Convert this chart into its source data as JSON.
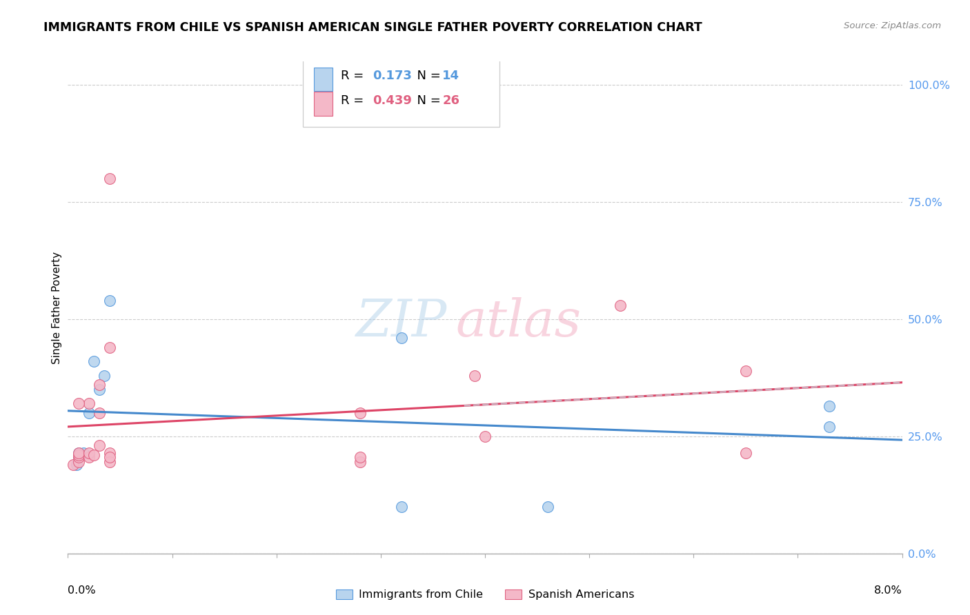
{
  "title": "IMMIGRANTS FROM CHILE VS SPANISH AMERICAN SINGLE FATHER POVERTY CORRELATION CHART",
  "source": "Source: ZipAtlas.com",
  "ylabel": "Single Father Poverty",
  "right_y_ticks": [
    0.0,
    0.25,
    0.5,
    0.75,
    1.0
  ],
  "right_y_labels": [
    "0.0%",
    "25.0%",
    "50.0%",
    "75.0%",
    "100.0%"
  ],
  "xlim": [
    0.0,
    0.08
  ],
  "ylim": [
    0.0,
    1.05
  ],
  "watermark_zip": "ZIP",
  "watermark_atlas": "atlas",
  "blue_R": "0.173",
  "blue_N": "14",
  "pink_R": "0.439",
  "pink_N": "26",
  "blue_label": "Immigrants from Chile",
  "pink_label": "Spanish Americans",
  "blue_face": "#b8d4ee",
  "blue_edge": "#5599dd",
  "pink_face": "#f4b8c8",
  "pink_edge": "#e06080",
  "blue_line": "#4488cc",
  "pink_line": "#dd4466",
  "pink_dash": "#ccaabb",
  "grid_color": "#cccccc",
  "right_tick_color": "#5599ee",
  "marker_size": 130,
  "chile_x": [
    0.0008,
    0.001,
    0.001,
    0.0015,
    0.002,
    0.0025,
    0.003,
    0.0035,
    0.004,
    0.032,
    0.032,
    0.046,
    0.073,
    0.073
  ],
  "chile_y": [
    0.19,
    0.205,
    0.215,
    0.215,
    0.3,
    0.41,
    0.35,
    0.38,
    0.54,
    0.46,
    0.1,
    0.1,
    0.27,
    0.315
  ],
  "spanish_x": [
    0.0005,
    0.001,
    0.001,
    0.001,
    0.001,
    0.002,
    0.002,
    0.002,
    0.0025,
    0.003,
    0.003,
    0.003,
    0.004,
    0.004,
    0.004,
    0.004,
    0.004,
    0.028,
    0.028,
    0.028,
    0.039,
    0.04,
    0.053,
    0.065,
    0.065,
    0.001
  ],
  "spanish_y": [
    0.19,
    0.195,
    0.205,
    0.21,
    0.215,
    0.205,
    0.215,
    0.32,
    0.21,
    0.23,
    0.3,
    0.36,
    0.44,
    0.215,
    0.195,
    0.205,
    0.8,
    0.3,
    0.195,
    0.205,
    0.38,
    0.25,
    0.53,
    0.215,
    0.39,
    0.32
  ]
}
